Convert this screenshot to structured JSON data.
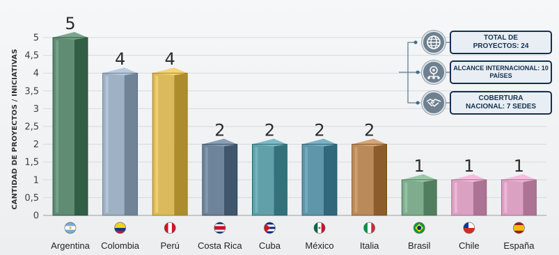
{
  "chart_data": {
    "type": "bar",
    "ylabel": "CANTIDAD DE PROYECTOS / INICIATIVAS",
    "xlabel": "",
    "ylim": [
      0,
      5
    ],
    "yticks": [
      "0",
      "0,5",
      "1",
      "1,5",
      "2",
      "2,5",
      "3",
      "3,5",
      "4",
      "4,5",
      "5"
    ],
    "categories": [
      "Argentina",
      "Colombia",
      "Perú",
      "Costa Rica",
      "Cuba",
      "México",
      "Italia",
      "Brasil",
      "Chile",
      "España"
    ],
    "values": [
      5,
      4,
      4,
      2,
      2,
      2,
      2,
      1,
      1,
      1
    ],
    "value_labels": [
      "5",
      "4",
      "4",
      "2",
      "2",
      "2",
      "2",
      "1",
      "1",
      "1"
    ],
    "bar_colors": [
      "#4e7a62",
      "#8d9fb2",
      "#c9a84a",
      "#5b7288",
      "#4f8d97",
      "#4d8498",
      "#a87849",
      "#6e9a7c",
      "#c98fb0",
      "#c98fb0"
    ],
    "grid": true
  },
  "flags": [
    "flag-ar-icon",
    "flag-co-icon",
    "flag-pe-icon",
    "flag-cr-icon",
    "flag-cu-icon",
    "flag-mx-icon",
    "flag-it-icon",
    "flag-br-icon",
    "flag-cl-icon",
    "flag-es-icon"
  ],
  "info": [
    {
      "text": "TOTAL DE PROYECTOS: 24",
      "icon": "globe-icon"
    },
    {
      "text": "ALCANCE INTERNACIONAL: 10 PAÍSES",
      "icon": "network-icon"
    },
    {
      "text": "COBERTURA NACIONAL: 7 SEDES",
      "icon": "handshake-icon"
    }
  ],
  "colors": {
    "accent": "#14304f",
    "icon_bg": "#6f8190"
  }
}
